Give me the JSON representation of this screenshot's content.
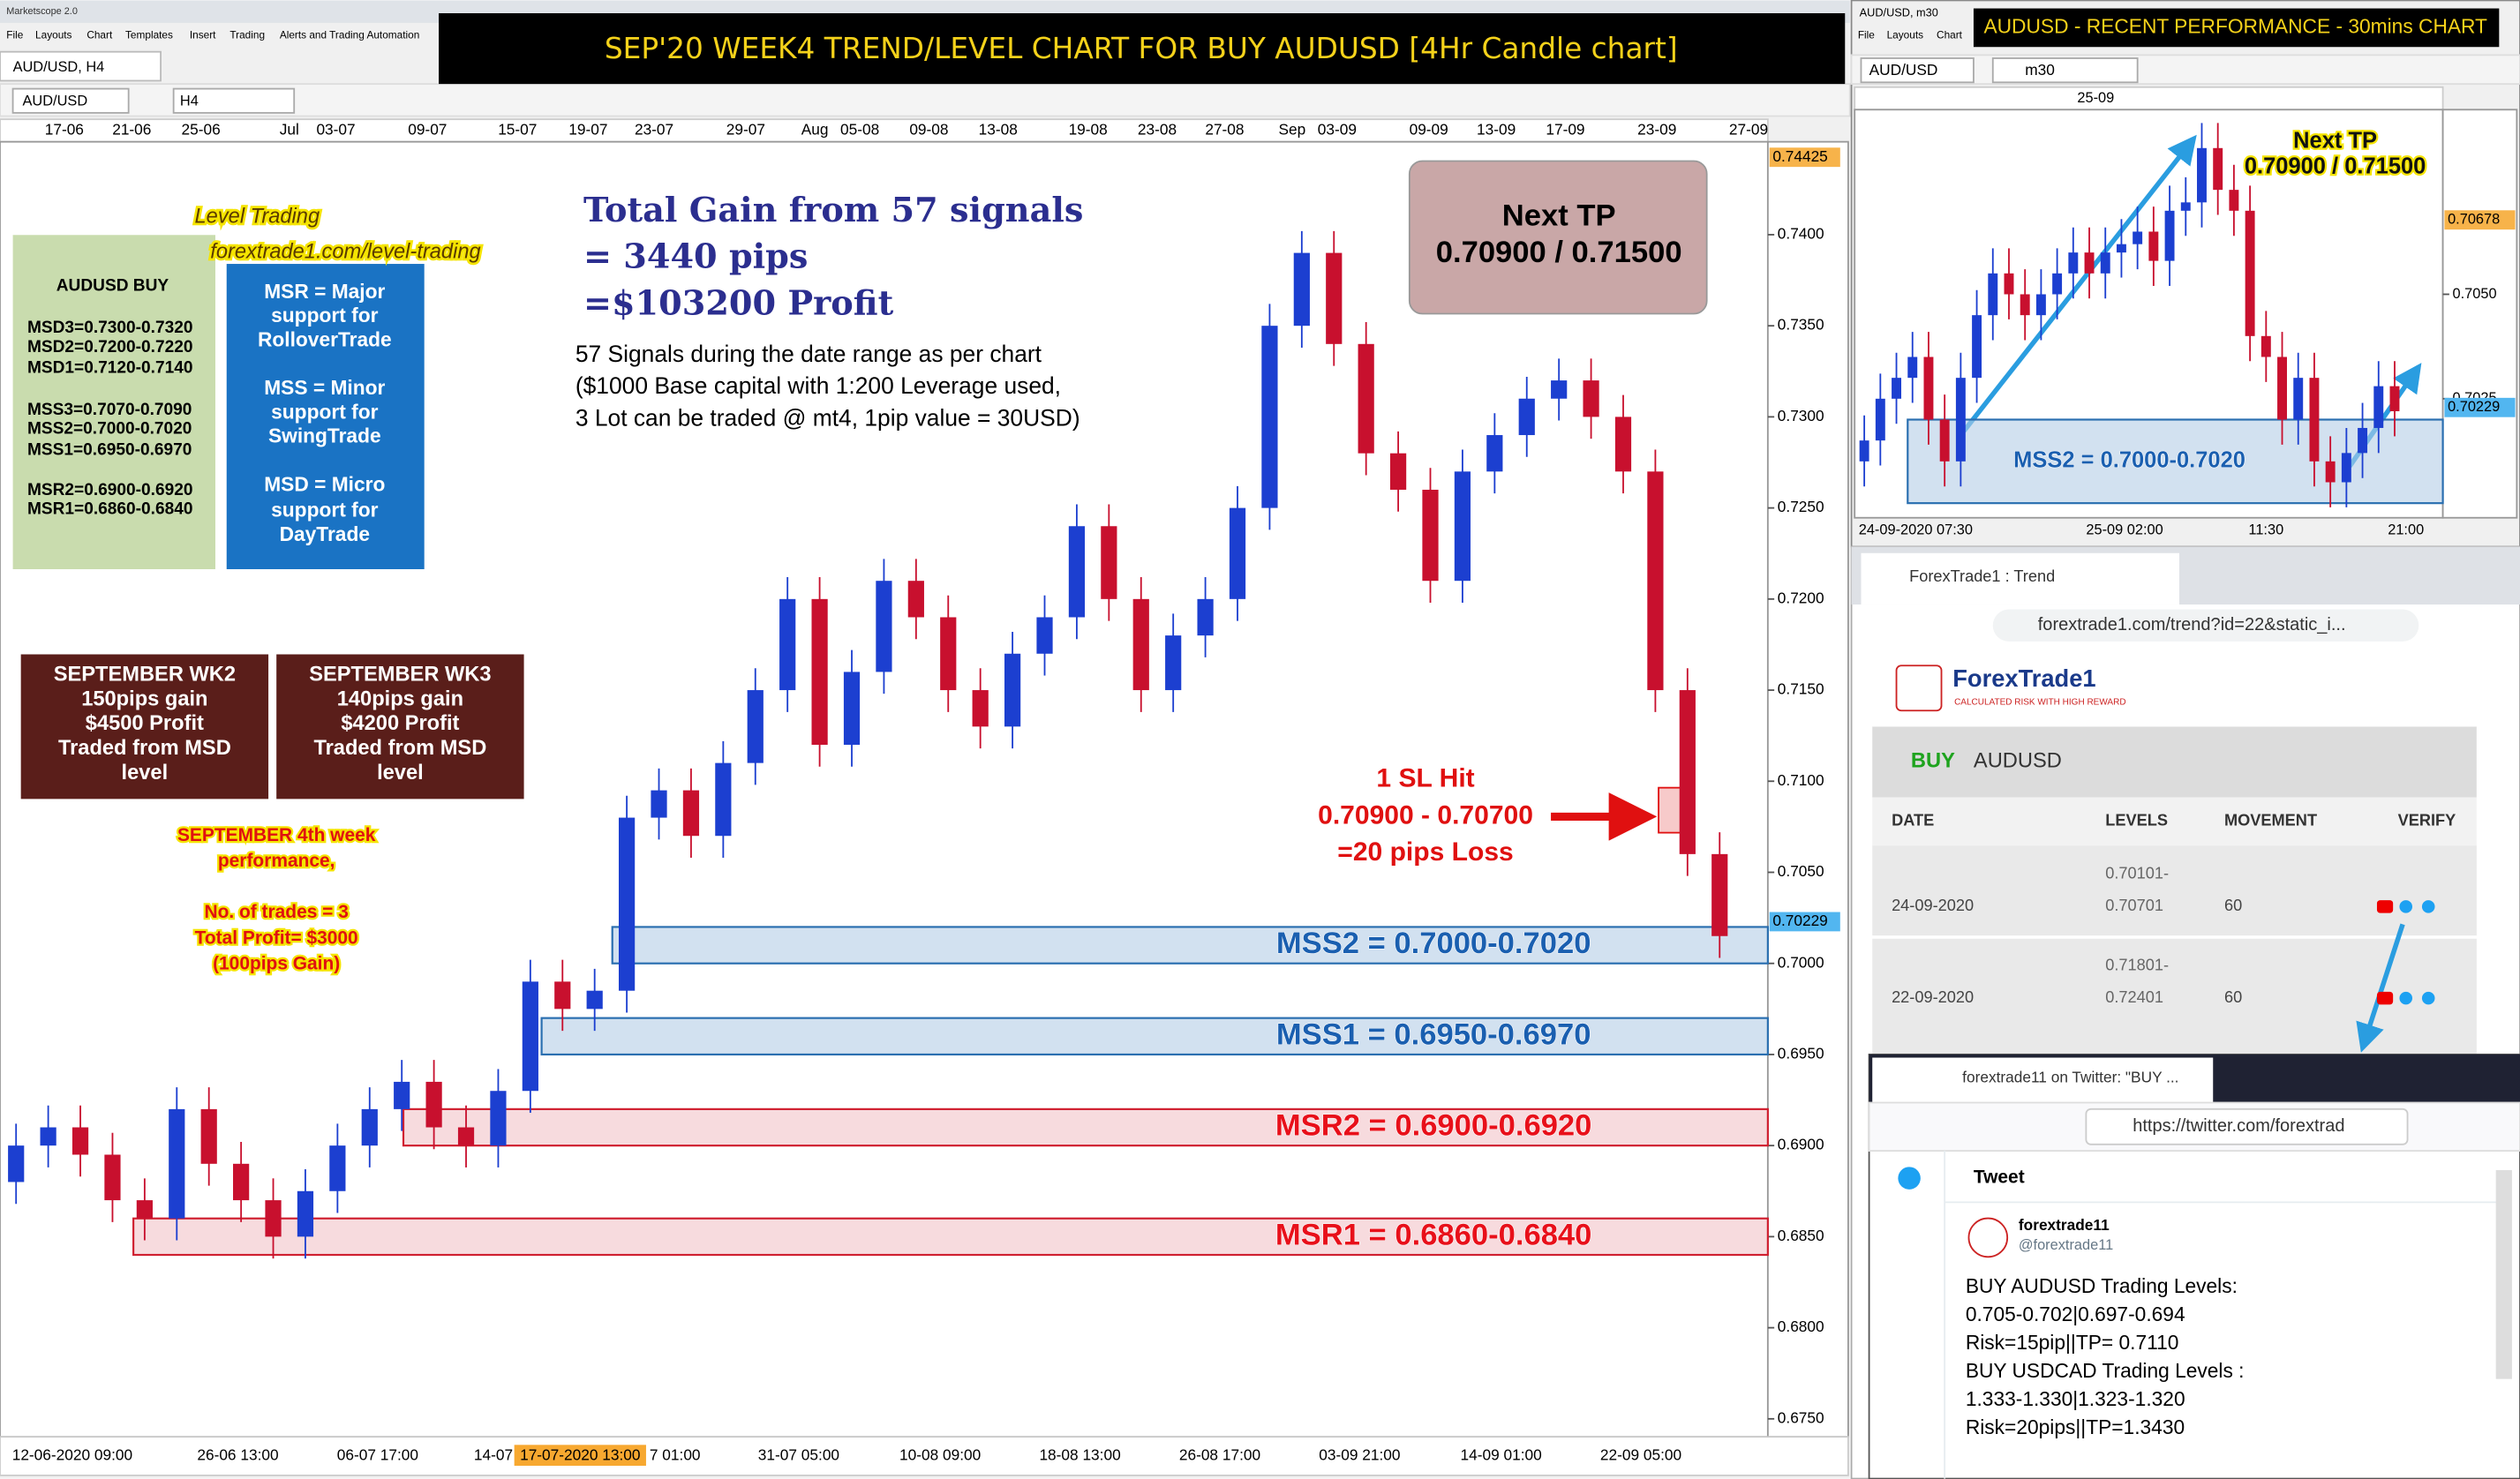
{
  "app": {
    "title": "Marketscope 2.0",
    "menu": [
      "File",
      "Layouts",
      "Chart",
      "Templates",
      "Insert",
      "Trading",
      "Alerts and Trading Automation"
    ],
    "tab": "AUD/USD, H4",
    "symbol": "AUD/USD",
    "timeframe": "H4"
  },
  "banner": "SEP'20 WEEK4 TREND/LEVEL CHART FOR BUY AUDUSD [4Hr Candle chart]",
  "chart_data": [
    {
      "type": "candlestick",
      "x_top": [
        "17-06",
        "21-06",
        "25-06",
        "Jul",
        "03-07",
        "09-07",
        "15-07",
        "19-07",
        "23-07",
        "29-07",
        "Aug",
        "05-08",
        "09-08",
        "13-08",
        "19-08",
        "23-08",
        "27-08",
        "Sep",
        "03-09",
        "09-09",
        "13-09",
        "17-09",
        "23-09",
        "27-09"
      ],
      "x_bottom": [
        "12-06-2020 09:00",
        "26-06 13:00",
        "06-07 17:00",
        "14-07",
        "7 01:00",
        "31-07 05:00",
        "10-08 09:00",
        "18-08 13:00",
        "26-08 17:00",
        "03-09 21:00",
        "14-09 01:00",
        "22-09 05:00"
      ],
      "cursor_label": "17-07-2020 13:00",
      "ylim": [
        0.6741,
        0.7451
      ],
      "yticks": [
        {
          "value": 0.74,
          "label": "0.7400"
        },
        {
          "value": 0.735,
          "label": "0.7350"
        },
        {
          "value": 0.73,
          "label": "0.7300"
        },
        {
          "value": 0.725,
          "label": "0.7250"
        },
        {
          "value": 0.72,
          "label": "0.7200"
        },
        {
          "value": 0.715,
          "label": "0.7150"
        },
        {
          "value": 0.71,
          "label": "0.7100"
        },
        {
          "value": 0.705,
          "label": "0.7050"
        },
        {
          "value": 0.7,
          "label": "0.7000"
        },
        {
          "value": 0.695,
          "label": "0.6950"
        },
        {
          "value": 0.69,
          "label": "0.6900"
        },
        {
          "value": 0.685,
          "label": "0.6850"
        },
        {
          "value": 0.68,
          "label": "0.6800"
        },
        {
          "value": 0.675,
          "label": "0.6750"
        }
      ],
      "price_markers": [
        0.74425,
        0.70229
      ],
      "up_color": "#1c3fd0",
      "down_color": "#c8102e",
      "open": [
        0.688,
        0.69,
        0.691,
        0.6895,
        0.687,
        0.686,
        0.692,
        0.689,
        0.687,
        0.685,
        0.6875,
        0.69,
        0.692,
        0.6935,
        0.691,
        0.69,
        0.693,
        0.699,
        0.6975,
        0.6985,
        0.708,
        0.7095,
        0.707,
        0.711,
        0.715,
        0.72,
        0.712,
        0.716,
        0.721,
        0.719,
        0.715,
        0.713,
        0.717,
        0.719,
        0.724,
        0.72,
        0.715,
        0.718,
        0.72,
        0.725,
        0.735,
        0.739,
        0.734,
        0.728,
        0.726,
        0.721,
        0.727,
        0.729,
        0.731,
        0.732,
        0.73,
        0.727,
        0.715,
        0.706
      ],
      "high": [
        0.6912,
        0.6922,
        0.6922,
        0.6907,
        0.6882,
        0.6932,
        0.6932,
        0.6902,
        0.6882,
        0.6887,
        0.6912,
        0.6932,
        0.6947,
        0.6947,
        0.6922,
        0.6942,
        0.7002,
        0.7002,
        0.6997,
        0.7092,
        0.7107,
        0.7107,
        0.7122,
        0.7162,
        0.7212,
        0.7212,
        0.7172,
        0.7222,
        0.7222,
        0.7202,
        0.7162,
        0.7182,
        0.7202,
        0.7252,
        0.7252,
        0.7212,
        0.7192,
        0.7212,
        0.7262,
        0.7362,
        0.7402,
        0.7402,
        0.7352,
        0.7292,
        0.7272,
        0.7282,
        0.7302,
        0.7322,
        0.7332,
        0.7332,
        0.7312,
        0.7282,
        0.7162,
        0.7072
      ],
      "low": [
        0.6868,
        0.6888,
        0.6883,
        0.6858,
        0.6848,
        0.6848,
        0.6878,
        0.6858,
        0.6838,
        0.6838,
        0.6863,
        0.6888,
        0.6908,
        0.6898,
        0.6888,
        0.6888,
        0.6918,
        0.6963,
        0.6963,
        0.6973,
        0.7068,
        0.7058,
        0.7058,
        0.7098,
        0.7138,
        0.7108,
        0.7108,
        0.7148,
        0.7178,
        0.7138,
        0.7118,
        0.7118,
        0.7158,
        0.7178,
        0.7188,
        0.7138,
        0.7138,
        0.7168,
        0.7188,
        0.7238,
        0.7338,
        0.7328,
        0.7268,
        0.7248,
        0.7198,
        0.7198,
        0.7258,
        0.7278,
        0.7298,
        0.7288,
        0.7258,
        0.7138,
        0.7048,
        0.7003
      ],
      "close": [
        0.69,
        0.691,
        0.6895,
        0.687,
        0.686,
        0.692,
        0.689,
        0.687,
        0.685,
        0.6875,
        0.69,
        0.692,
        0.6935,
        0.691,
        0.69,
        0.693,
        0.699,
        0.6975,
        0.6985,
        0.708,
        0.7095,
        0.707,
        0.711,
        0.715,
        0.72,
        0.712,
        0.716,
        0.721,
        0.719,
        0.715,
        0.713,
        0.717,
        0.719,
        0.724,
        0.72,
        0.715,
        0.718,
        0.72,
        0.725,
        0.735,
        0.739,
        0.734,
        0.728,
        0.726,
        0.721,
        0.727,
        0.729,
        0.731,
        0.732,
        0.73,
        0.727,
        0.715,
        0.706,
        0.7015
      ],
      "zones": [
        {
          "label": "MSS2 = 0.7000-0.7020",
          "low": 0.7,
          "high": 0.702,
          "color": "#2a6fb0"
        },
        {
          "label": "MSS1 = 0.6950-0.6970",
          "low": 0.695,
          "high": 0.697,
          "color": "#2a6fb0"
        },
        {
          "label": "MSR2 = 0.6900-0.6920",
          "low": 0.69,
          "high": 0.692,
          "color": "#d02030"
        },
        {
          "label": "MSR1 = 0.6860-0.6840",
          "low": 0.684,
          "high": 0.686,
          "color": "#d02030"
        }
      ],
      "level_trading": [
        "Level Trading",
        "forextrade1.com/level-trading"
      ],
      "levels_box": [
        "AUDUSD BUY",
        "MSD3=0.7300-0.7320",
        "MSD2=0.7200-0.7220",
        "MSD1=0.7120-0.7140",
        "MSS3=0.7070-0.7090",
        "MSS2=0.7000-0.7020",
        "MSS1=0.6950-0.6970",
        "MSR2=0.6900-0.6920",
        "MSR1=0.6860-0.6840"
      ],
      "legend_box": [
        "MSR = Major",
        "support for",
        "RolloverTrade",
        "MSS = Minor",
        "support for",
        "SwingTrade",
        "MSD = Micro",
        "support for",
        "DayTrade"
      ],
      "total_gain": [
        "Total Gain from 57 signals",
        "= 3440 pips",
        "=$103200 Profit"
      ],
      "signals_note": [
        "57 Signals during the date range as per chart",
        "($1000 Base capital with 1:200 Leverage used,",
        "3 Lot can be traded @ mt4, 1pip value = 30USD)"
      ],
      "next_tp": [
        "Next TP",
        "0.70900 / 0.71500"
      ],
      "week_boxes": [
        [
          "SEPTEMBER WK2",
          "150pips gain",
          "$4500 Profit",
          "Traded from MSD",
          "level"
        ],
        [
          "SEPTEMBER WK3",
          "140pips gain",
          "$4200 Profit",
          "Traded from MSD",
          "level"
        ]
      ],
      "week4": [
        "SEPTEMBER 4th week",
        "performance,",
        "No. of trades = 3",
        "Total Profit= $3000",
        "(100pips Gain)"
      ],
      "sl_hit": [
        "1 SL Hit",
        "0.70900 - 0.70700",
        "=20 pips Loss"
      ]
    },
    {
      "type": "candlestick",
      "banner": "AUDUSD - RECENT PERFORMANCE - 30mins CHART",
      "menu": [
        "File",
        "Layouts",
        "Chart"
      ],
      "tab": "AUD/USD, m30",
      "symbol": "AUD/USD",
      "timeframe": "m30",
      "x_top": [
        "25-09"
      ],
      "x_bottom": [
        "24-09-2020 07:30",
        "25-09 02:00",
        "11:30",
        "21:00"
      ],
      "ylim": [
        0.69965,
        0.70942
      ],
      "yticks": [
        {
          "value": 0.705,
          "label": "0.7050"
        },
        {
          "value": 0.7025,
          "label": "0.7025"
        }
      ],
      "price_markers": [
        0.70678,
        0.70229
      ],
      "up_color": "#1c3fd0",
      "down_color": "#c8102e",
      "open": [
        0.701,
        0.7015,
        0.7025,
        0.703,
        0.7035,
        0.702,
        0.701,
        0.703,
        0.7045,
        0.7055,
        0.705,
        0.7045,
        0.705,
        0.7055,
        0.706,
        0.7055,
        0.706,
        0.7062,
        0.7065,
        0.7058,
        0.707,
        0.7072,
        0.7085,
        0.7075,
        0.707,
        0.704,
        0.7035,
        0.702,
        0.703,
        0.701,
        0.7005,
        0.7012,
        0.7018,
        0.7028
      ],
      "high": [
        0.7021,
        0.7031,
        0.7036,
        0.7041,
        0.7041,
        0.7026,
        0.7036,
        0.7051,
        0.7061,
        0.7061,
        0.7056,
        0.7056,
        0.7061,
        0.7066,
        0.7066,
        0.7066,
        0.7068,
        0.7071,
        0.7071,
        0.7076,
        0.7078,
        0.7091,
        0.7091,
        0.7081,
        0.7076,
        0.7046,
        0.7041,
        0.7036,
        0.7036,
        0.7016,
        0.7018,
        0.7024,
        0.7034,
        0.7034
      ],
      "low": [
        0.7004,
        0.7009,
        0.7019,
        0.7024,
        0.7014,
        0.7004,
        0.7004,
        0.7024,
        0.7039,
        0.7044,
        0.7039,
        0.7039,
        0.7044,
        0.7049,
        0.7049,
        0.7049,
        0.7054,
        0.7056,
        0.7052,
        0.7052,
        0.7064,
        0.7066,
        0.7069,
        0.7064,
        0.7034,
        0.7029,
        0.7014,
        0.7014,
        0.7004,
        0.6999,
        0.6999,
        0.7006,
        0.7012,
        0.7016
      ],
      "close": [
        0.7015,
        0.7025,
        0.703,
        0.7035,
        0.702,
        0.701,
        0.703,
        0.7045,
        0.7055,
        0.705,
        0.7045,
        0.705,
        0.7055,
        0.706,
        0.7055,
        0.706,
        0.7062,
        0.7065,
        0.7058,
        0.707,
        0.7072,
        0.7085,
        0.7075,
        0.707,
        0.704,
        0.7035,
        0.702,
        0.703,
        0.701,
        0.7005,
        0.7012,
        0.7018,
        0.7028,
        0.7022
      ],
      "zones": [
        {
          "label": "MSS2 = 0.7000-0.7020",
          "low": 0.7,
          "high": 0.702,
          "color": "#2a6fb0"
        }
      ],
      "next_tp": [
        "Next TP",
        "0.70900 / 0.71500"
      ]
    }
  ],
  "browser": {
    "tab": "ForexTrade1 : Trend",
    "url": "forextrade1.com/trend?id=22&static_i...",
    "brand": "ForexTrade1",
    "tagline": "CALCULATED RISK WITH HIGH REWARD",
    "side": "BUY",
    "pair": "AUDUSD",
    "table": {
      "headers": [
        "DATE",
        "LEVELS",
        "MOVEMENT",
        "VERIFY"
      ],
      "rows": [
        [
          "24-09-2020",
          "0.70101-",
          "0.70701",
          "60"
        ],
        [
          "22-09-2020",
          "0.71801-",
          "0.72401",
          "60"
        ]
      ]
    }
  },
  "twitter": {
    "tab": "forextrade11 on Twitter: \"BUY ...",
    "url": "https://twitter.com/forextrad",
    "heading": "Tweet",
    "name": "forextrade11",
    "handle": "@forextrade11",
    "lines": [
      "BUY AUDUSD Trading Levels:",
      "0.705-0.702|0.697-0.694",
      "Risk=15pip||TP= 0.7110",
      "BUY USDCAD Trading Levels :",
      "1.333-1.330|1.323-1.320",
      "Risk=20pips||TP=1.3430"
    ]
  }
}
